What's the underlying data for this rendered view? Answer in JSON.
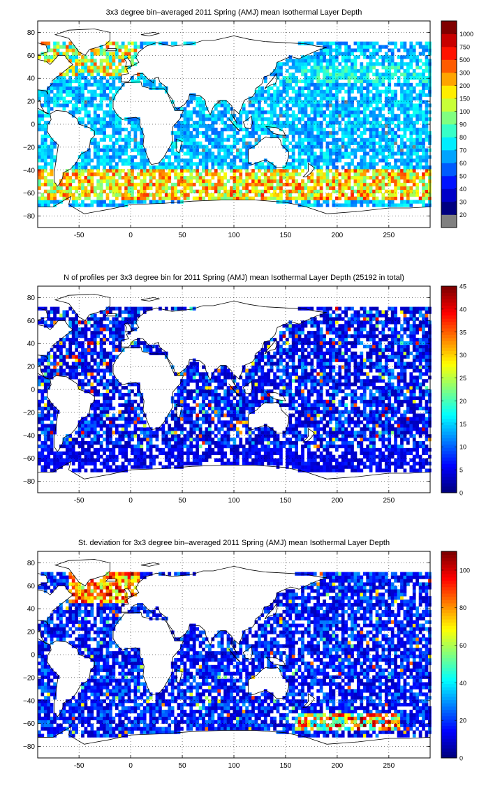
{
  "panels": [
    {
      "title": "3x3 degree bin–averaged 2011 Spring (AMJ) mean Isothermal Layer Depth",
      "lon_ticks": [
        "-50",
        "0",
        "50",
        "100",
        "150",
        "200",
        "250"
      ],
      "lat_ticks": [
        "80",
        "60",
        "40",
        "20",
        "0",
        "−20",
        "−40",
        "−60",
        "−80"
      ],
      "colorbar_labels": [
        "20",
        "30",
        "40",
        "50",
        "60",
        "70",
        "80",
        "90",
        "100",
        "150",
        "200",
        "300",
        "500",
        "750",
        "1000"
      ],
      "colorbar_type": "categorical",
      "colorbar_nodata_color": "#808080"
    },
    {
      "title": "N of profiles per 3x3 degree bin for 2011 Spring (AMJ) mean Isothermal Layer Depth  (25192 in total)",
      "lon_ticks": [
        "-50",
        "0",
        "50",
        "100",
        "150",
        "200",
        "250"
      ],
      "lat_ticks": [
        "80",
        "60",
        "40",
        "20",
        "0",
        "−20",
        "−40",
        "−60",
        "−80"
      ],
      "colorbar_labels": [
        "0",
        "5",
        "10",
        "15",
        "20",
        "25",
        "30",
        "35",
        "40",
        "45"
      ],
      "colorbar_type": "continuous",
      "colorbar_range": [
        0,
        45
      ]
    },
    {
      "title": "St. deviation for 3x3 degree bin–averaged 2011 Spring (AMJ) mean Isothermal Layer Depth",
      "lon_ticks": [
        "-50",
        "0",
        "50",
        "100",
        "150",
        "200",
        "250"
      ],
      "lat_ticks": [
        "80",
        "60",
        "40",
        "20",
        "0",
        "−20",
        "−40",
        "−60",
        "−80"
      ],
      "colorbar_labels": [
        "0",
        "20",
        "40",
        "60",
        "80",
        "100"
      ],
      "colorbar_type": "continuous",
      "colorbar_range": [
        0,
        110
      ]
    }
  ],
  "map": {
    "lon_range": [
      -90,
      290
    ],
    "lat_range": [
      -90,
      90
    ],
    "bin_size_deg": 3,
    "grid": true,
    "colormap": "jet"
  }
}
